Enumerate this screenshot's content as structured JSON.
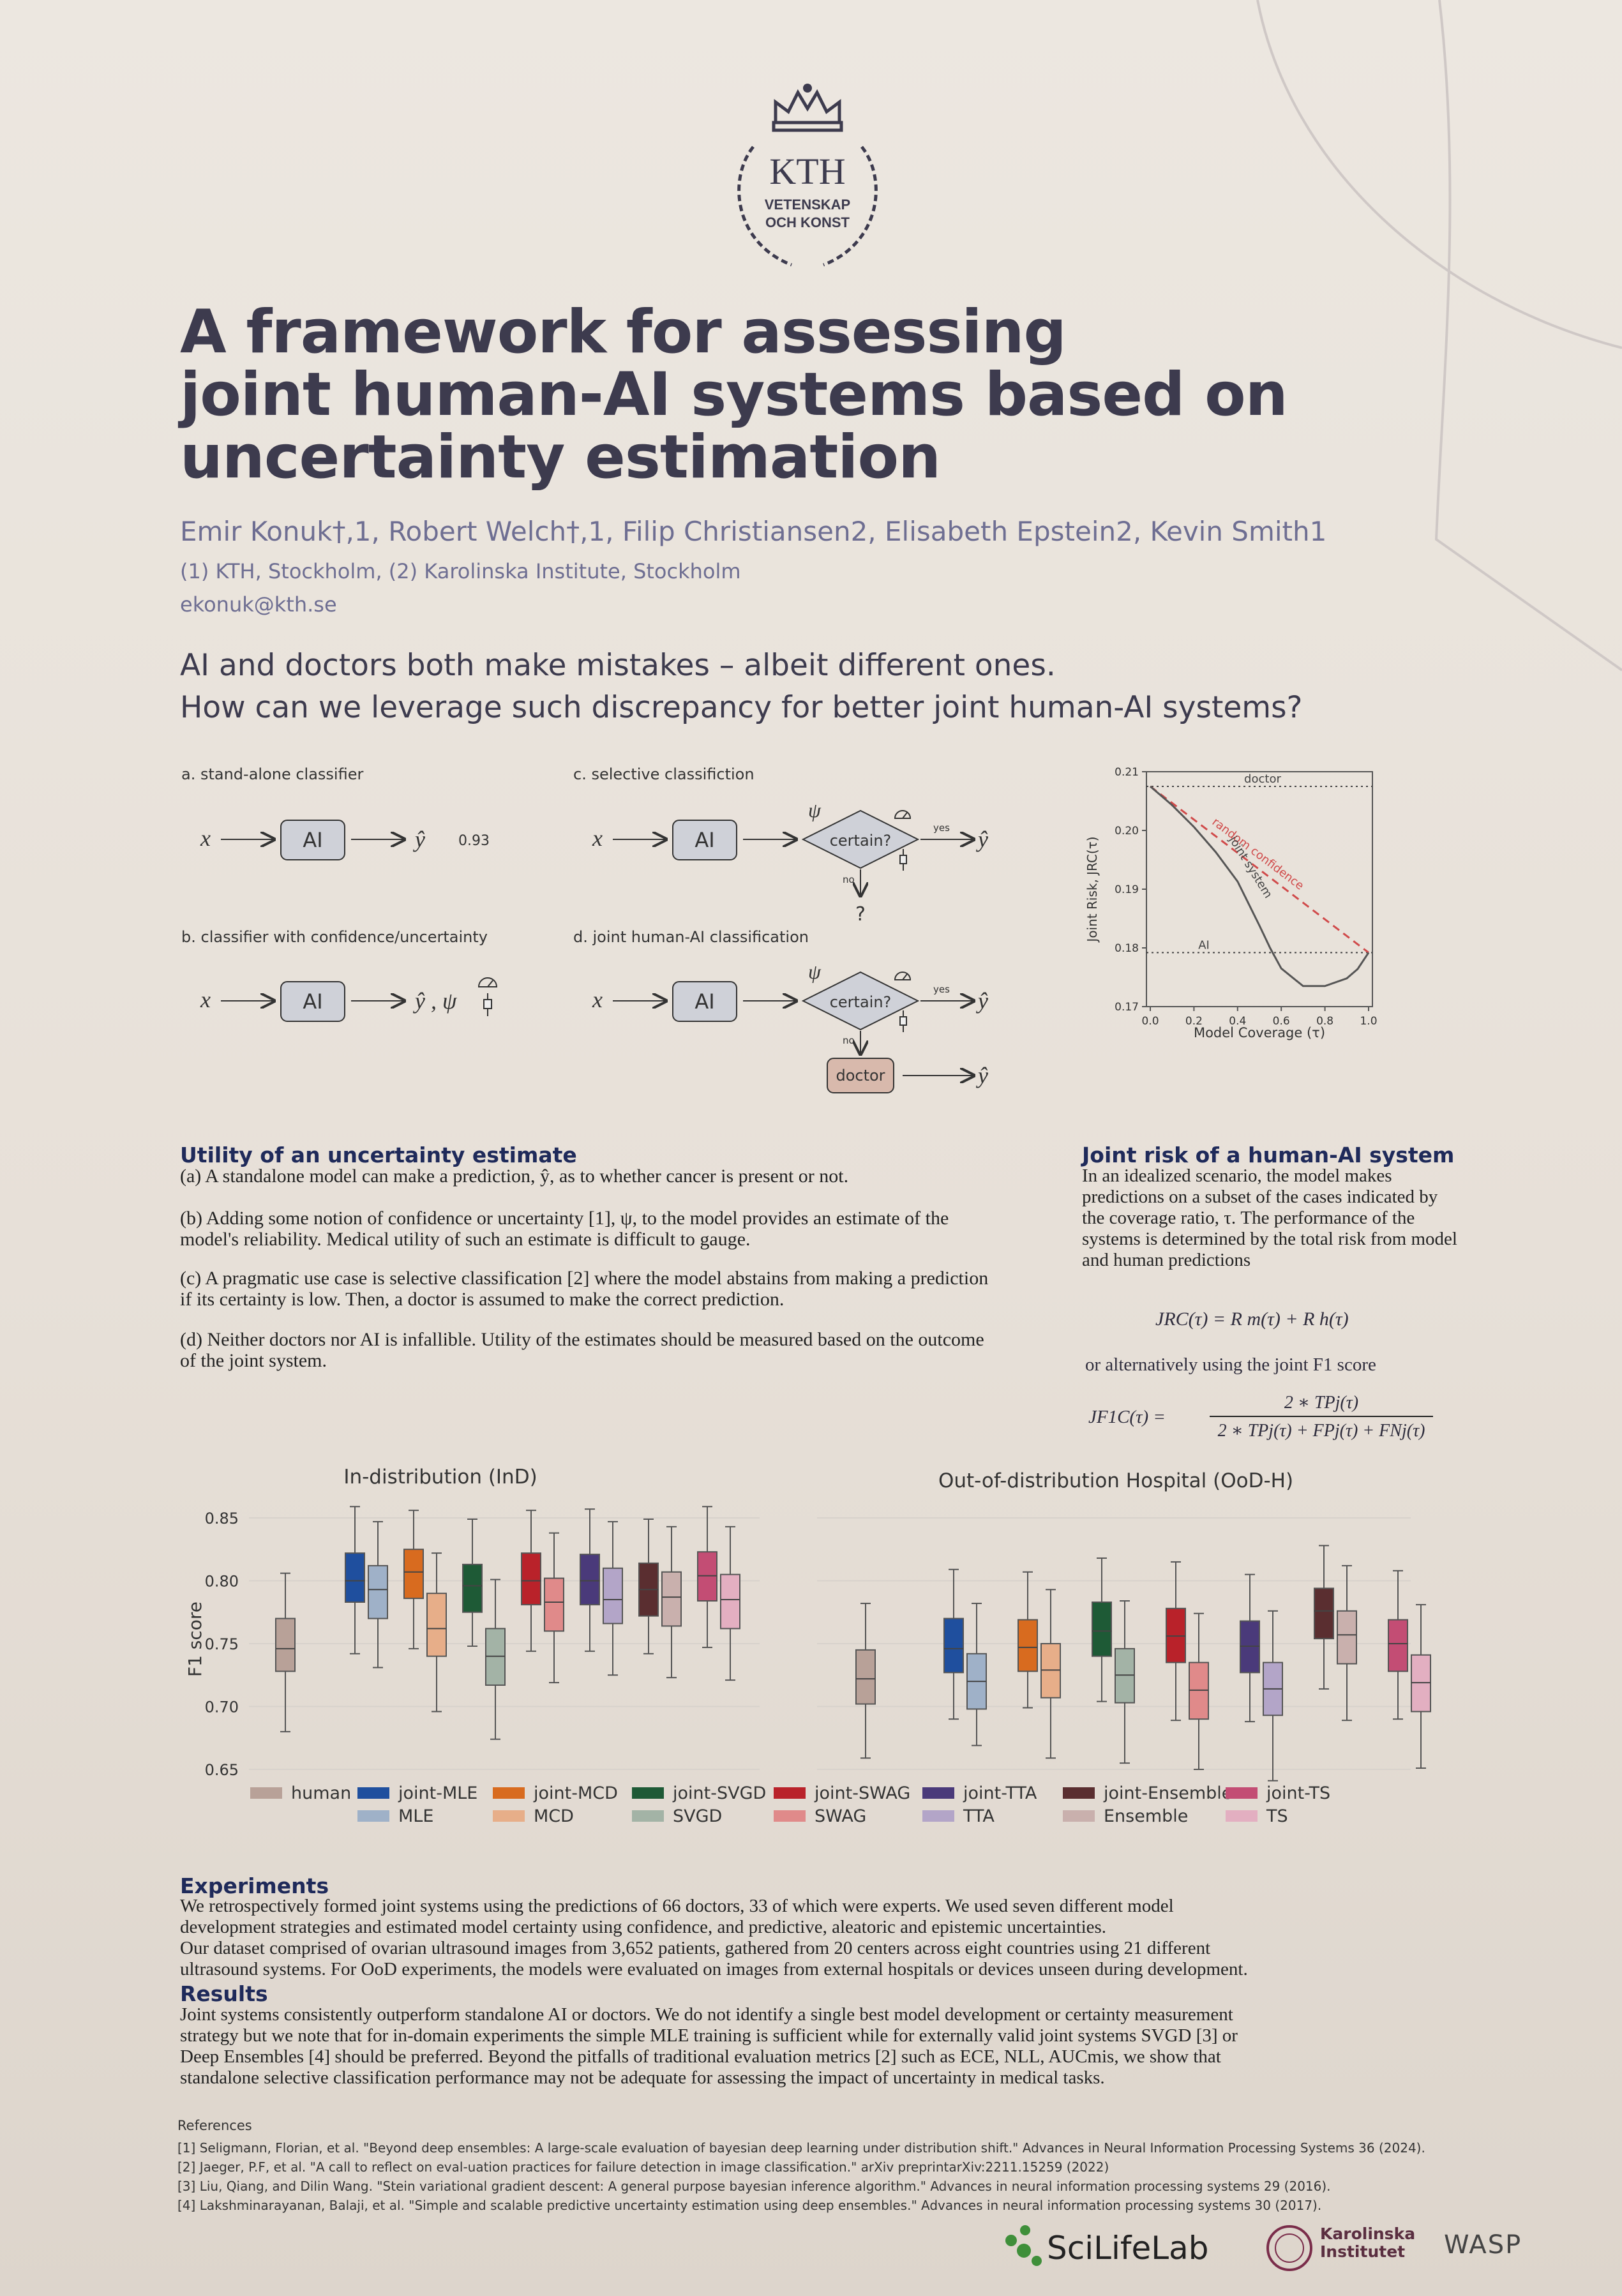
{
  "logo": {
    "name": "kth-crown-logo",
    "line1": "KTH",
    "line2": "VETENSKAP",
    "line3": "OCH KONST"
  },
  "title": [
    "A framework for assessing",
    "joint human-AI systems based on",
    "uncertainty estimation"
  ],
  "authors": "Emir Konuk†,1, Robert Welch†,1, Filip Christiansen2, Elisabeth Epstein2, Kevin Smith1",
  "affiliations": "(1) KTH, Stockholm, (2) Karolinska Institute, Stockholm",
  "email": "ekonuk@kth.se",
  "lead": [
    "AI and doctors both make mistakes – albeit different ones.",
    "How can we leverage such discrepancy for better joint human-AI systems?"
  ],
  "diagram": {
    "panel_a": "a.  stand-alone classifier",
    "panel_b": "b.  classifier with confidence/uncertainty",
    "panel_c": "c.  selective classifiction",
    "panel_d": "d.  joint human-AI classification",
    "x": "x",
    "ai": "AI",
    "yhat": "ŷ",
    "yhat_psi": "ŷ , ψ",
    "psi": "ψ",
    "value": "0.93",
    "certain": "certain?",
    "yes": "yes",
    "no": "no",
    "question": "?",
    "doctor": "doctor"
  },
  "jrc_chart": {
    "type": "line",
    "xlabel": "Model Coverage (τ)",
    "ylabel": "Joint Risk, JRC(τ)",
    "xlim": [
      0,
      1
    ],
    "ylim": [
      0.17,
      0.21
    ],
    "xticks": [
      "0.0",
      "0.2",
      "0.4",
      "0.6",
      "0.8",
      "1.0"
    ],
    "yticks": [
      "0.17",
      "0.18",
      "0.19",
      "0.20",
      "0.21"
    ],
    "doctor_label": "doctor",
    "doctor_level": 0.2075,
    "ai_label": "AI",
    "ai_level": 0.1792,
    "random_label": "random confidence",
    "joint_label": "joint system",
    "joint_x": [
      0.0,
      0.1,
      0.2,
      0.3,
      0.4,
      0.5,
      0.55,
      0.6,
      0.7,
      0.8,
      0.9,
      0.95,
      1.0
    ],
    "joint_y": [
      0.2075,
      0.2043,
      0.2006,
      0.1963,
      0.1913,
      0.1838,
      0.1799,
      0.1765,
      0.1735,
      0.1735,
      0.1748,
      0.1764,
      0.1792
    ],
    "colors": {
      "random": "#d04a4a",
      "joint": "#555",
      "ref": "#444"
    }
  },
  "utility": {
    "title": "Utility of an uncertainty estimate",
    "items": [
      "(a) A standalone model can make a prediction, ŷ, as to whether cancer is present or not.",
      "(b) Adding some notion of confidence or uncertainty [1], ψ, to the model provides an estimate of the model's reliability. Medical utility of such an estimate is difficult to gauge.",
      "(c) A pragmatic use case is selective classification [2] where the model abstains from making a prediction if its certainty is low. Then, a doctor is assumed to make the correct prediction.",
      "(d) Neither doctors nor AI is infallible. Utility of the estimates should be measured based on the outcome of the joint system."
    ]
  },
  "joint_risk": {
    "title": "Joint risk of a human-AI system",
    "text": "In an idealized scenario, the model makes predictions on a subset of the cases indicated by the coverage ratio, τ. The performance of the systems is determined by the total risk from model and human predictions",
    "eq1": "JRC(τ) = R m(τ) + R h(τ)",
    "alt": "or alternatively using the joint F1 score",
    "eq2_lhs": "JF1C(τ) =",
    "eq2_num": "2 ∗ TPj(τ)",
    "eq2_den": "2 ∗ TPj(τ) + FPj(τ) + FNj(τ)"
  },
  "chart_data": {
    "type": "box",
    "ylabel": "F1 score",
    "ylim": [
      0.65,
      0.85
    ],
    "yticks": [
      "0.65",
      "0.70",
      "0.75",
      "0.80",
      "0.85"
    ],
    "panels": [
      {
        "title": "In-distribution (InD)",
        "groups": [
          {
            "name": "human",
            "boxes": [
              {
                "min": 0.68,
                "q1": 0.728,
                "med": 0.746,
                "q3": 0.77,
                "max": 0.806,
                "color": "#b8a198"
              }
            ]
          },
          {
            "name": "MLE",
            "boxes": [
              {
                "min": 0.742,
                "q1": 0.783,
                "med": 0.8,
                "q3": 0.822,
                "max": 0.859,
                "color": "#1f4f9e"
              },
              {
                "min": 0.731,
                "q1": 0.77,
                "med": 0.793,
                "q3": 0.812,
                "max": 0.847,
                "color": "#9fb1c8"
              }
            ]
          },
          {
            "name": "MCD",
            "boxes": [
              {
                "min": 0.746,
                "q1": 0.786,
                "med": 0.807,
                "q3": 0.825,
                "max": 0.856,
                "color": "#d86b1f"
              },
              {
                "min": 0.696,
                "q1": 0.74,
                "med": 0.762,
                "q3": 0.79,
                "max": 0.822,
                "color": "#e7ae89"
              }
            ]
          },
          {
            "name": "SVGD",
            "boxes": [
              {
                "min": 0.748,
                "q1": 0.775,
                "med": 0.796,
                "q3": 0.813,
                "max": 0.849,
                "color": "#1e5a36"
              },
              {
                "min": 0.674,
                "q1": 0.717,
                "med": 0.74,
                "q3": 0.762,
                "max": 0.801,
                "color": "#a3b3a6"
              }
            ]
          },
          {
            "name": "SWAG",
            "boxes": [
              {
                "min": 0.744,
                "q1": 0.781,
                "med": 0.8,
                "q3": 0.822,
                "max": 0.856,
                "color": "#b9222a"
              },
              {
                "min": 0.719,
                "q1": 0.76,
                "med": 0.783,
                "q3": 0.802,
                "max": 0.838,
                "color": "#e08a8a"
              }
            ]
          },
          {
            "name": "TTA",
            "boxes": [
              {
                "min": 0.744,
                "q1": 0.781,
                "med": 0.8,
                "q3": 0.821,
                "max": 0.857,
                "color": "#4a3a7a"
              },
              {
                "min": 0.725,
                "q1": 0.766,
                "med": 0.785,
                "q3": 0.81,
                "max": 0.847,
                "color": "#b3a5c8"
              }
            ]
          },
          {
            "name": "Ensemble",
            "boxes": [
              {
                "min": 0.742,
                "q1": 0.772,
                "med": 0.793,
                "q3": 0.814,
                "max": 0.849,
                "color": "#5a2e30"
              },
              {
                "min": 0.723,
                "q1": 0.764,
                "med": 0.787,
                "q3": 0.807,
                "max": 0.843,
                "color": "#c9b0ad"
              }
            ]
          },
          {
            "name": "TS",
            "boxes": [
              {
                "min": 0.747,
                "q1": 0.784,
                "med": 0.804,
                "q3": 0.823,
                "max": 0.859,
                "color": "#c34d74"
              },
              {
                "min": 0.721,
                "q1": 0.762,
                "med": 0.785,
                "q3": 0.805,
                "max": 0.843,
                "color": "#e3afc1"
              }
            ]
          }
        ]
      },
      {
        "title": "Out-of-distribution Hospital (OoD-H)",
        "groups": [
          {
            "name": "human",
            "boxes": [
              {
                "min": 0.659,
                "q1": 0.702,
                "med": 0.722,
                "q3": 0.745,
                "max": 0.782,
                "color": "#b8a198"
              }
            ]
          },
          {
            "name": "MLE",
            "boxes": [
              {
                "min": 0.69,
                "q1": 0.727,
                "med": 0.746,
                "q3": 0.77,
                "max": 0.809,
                "color": "#1f4f9e"
              },
              {
                "min": 0.669,
                "q1": 0.698,
                "med": 0.72,
                "q3": 0.742,
                "max": 0.782,
                "color": "#9fb1c8"
              }
            ]
          },
          {
            "name": "MCD",
            "boxes": [
              {
                "min": 0.699,
                "q1": 0.728,
                "med": 0.747,
                "q3": 0.769,
                "max": 0.807,
                "color": "#d86b1f"
              },
              {
                "min": 0.659,
                "q1": 0.707,
                "med": 0.729,
                "q3": 0.75,
                "max": 0.793,
                "color": "#e7ae89"
              }
            ]
          },
          {
            "name": "SVGD",
            "boxes": [
              {
                "min": 0.704,
                "q1": 0.74,
                "med": 0.76,
                "q3": 0.783,
                "max": 0.818,
                "color": "#1e5a36"
              },
              {
                "min": 0.655,
                "q1": 0.703,
                "med": 0.725,
                "q3": 0.746,
                "max": 0.784,
                "color": "#a3b3a6"
              }
            ]
          },
          {
            "name": "SWAG",
            "boxes": [
              {
                "min": 0.689,
                "q1": 0.735,
                "med": 0.756,
                "q3": 0.778,
                "max": 0.815,
                "color": "#b9222a"
              },
              {
                "min": 0.65,
                "q1": 0.69,
                "med": 0.713,
                "q3": 0.735,
                "max": 0.774,
                "color": "#e08a8a"
              }
            ]
          },
          {
            "name": "TTA",
            "boxes": [
              {
                "min": 0.688,
                "q1": 0.727,
                "med": 0.748,
                "q3": 0.768,
                "max": 0.805,
                "color": "#4a3a7a"
              },
              {
                "min": 0.641,
                "q1": 0.693,
                "med": 0.714,
                "q3": 0.735,
                "max": 0.776,
                "color": "#b3a5c8"
              }
            ]
          },
          {
            "name": "Ensemble",
            "boxes": [
              {
                "min": 0.714,
                "q1": 0.754,
                "med": 0.776,
                "q3": 0.794,
                "max": 0.828,
                "color": "#5a2e30"
              },
              {
                "min": 0.689,
                "q1": 0.734,
                "med": 0.757,
                "q3": 0.776,
                "max": 0.812,
                "color": "#c9b0ad"
              }
            ]
          },
          {
            "name": "TS",
            "boxes": [
              {
                "min": 0.69,
                "q1": 0.728,
                "med": 0.75,
                "q3": 0.769,
                "max": 0.808,
                "color": "#c34d74"
              },
              {
                "min": 0.651,
                "q1": 0.696,
                "med": 0.719,
                "q3": 0.741,
                "max": 0.781,
                "color": "#e3afc1"
              }
            ]
          }
        ]
      }
    ],
    "legend": [
      {
        "label": "human",
        "color": "#b8a198"
      },
      {
        "label": "joint-MLE",
        "color": "#1f4f9e"
      },
      {
        "label": "MLE",
        "color": "#9fb1c8"
      },
      {
        "label": "joint-MCD",
        "color": "#d86b1f"
      },
      {
        "label": "MCD",
        "color": "#e7ae89"
      },
      {
        "label": "joint-SVGD",
        "color": "#1e5a36"
      },
      {
        "label": "SVGD",
        "color": "#a3b3a6"
      },
      {
        "label": "joint-SWAG",
        "color": "#b9222a"
      },
      {
        "label": "SWAG",
        "color": "#e08a8a"
      },
      {
        "label": "joint-TTA",
        "color": "#4a3a7a"
      },
      {
        "label": "TTA",
        "color": "#b3a5c8"
      },
      {
        "label": "joint-Ensemble",
        "color": "#5a2e30"
      },
      {
        "label": "Ensemble",
        "color": "#c9b0ad"
      },
      {
        "label": "joint-TS",
        "color": "#c34d74"
      },
      {
        "label": "TS",
        "color": "#e3afc1"
      }
    ]
  },
  "experiments": {
    "title": "Experiments",
    "lines": [
      "We retrospectively formed joint systems using the predictions of 66 doctors, 33 of which were experts. We used seven different model",
      "development strategies and estimated model certainty using confidence, and predictive, aleatoric and epistemic uncertainties.",
      "Our dataset comprised of ovarian ultrasound images from 3,652 patients, gathered from 20 centers across eight countries using 21 different",
      "ultrasound systems. For OoD experiments, the models were evaluated on images from external hospitals or devices unseen during development."
    ]
  },
  "results": {
    "title": "Results",
    "lines": [
      "Joint systems consistently outperform standalone AI or doctors. We do not identify a single best model development or certainty measurement",
      "strategy but we note that for in-domain experiments the simple MLE training is sufficient while for externally valid joint systems SVGD [3] or",
      "Deep Ensembles [4] should be preferred. Beyond the pitfalls of traditional evaluation metrics [2] such as ECE, NLL, AUCmis, we show that",
      "standalone selective classification performance may not be adequate for assessing the impact of uncertainty in medical tasks."
    ]
  },
  "references": {
    "title": "References",
    "items": [
      "[1] Seligmann, Florian, et al. \"Beyond deep ensembles: A large-scale evaluation of bayesian deep learning under distribution shift.\" Advances in Neural Information Processing Systems 36 (2024).",
      "[2] Jaeger, P.F, et al. \"A call to reflect on eval-uation practices for failure detection in image classification.\" arXiv preprintarXiv:2211.15259 (2022)",
      "[3] Liu, Qiang, and Dilin Wang. \"Stein variational gradient descent: A general purpose bayesian inference algorithm.\" Advances in neural information processing systems 29 (2016).",
      "[4] Lakshminarayanan, Balaji, et al. \"Simple and scalable predictive uncertainty estimation using deep ensembles.\" Advances in neural information processing systems 30 (2017)."
    ]
  },
  "footer": {
    "scilifelab": "SciLifeLab",
    "karolinska1": "Karolinska",
    "karolinska2": "Institutet",
    "wasp": "WASP"
  }
}
